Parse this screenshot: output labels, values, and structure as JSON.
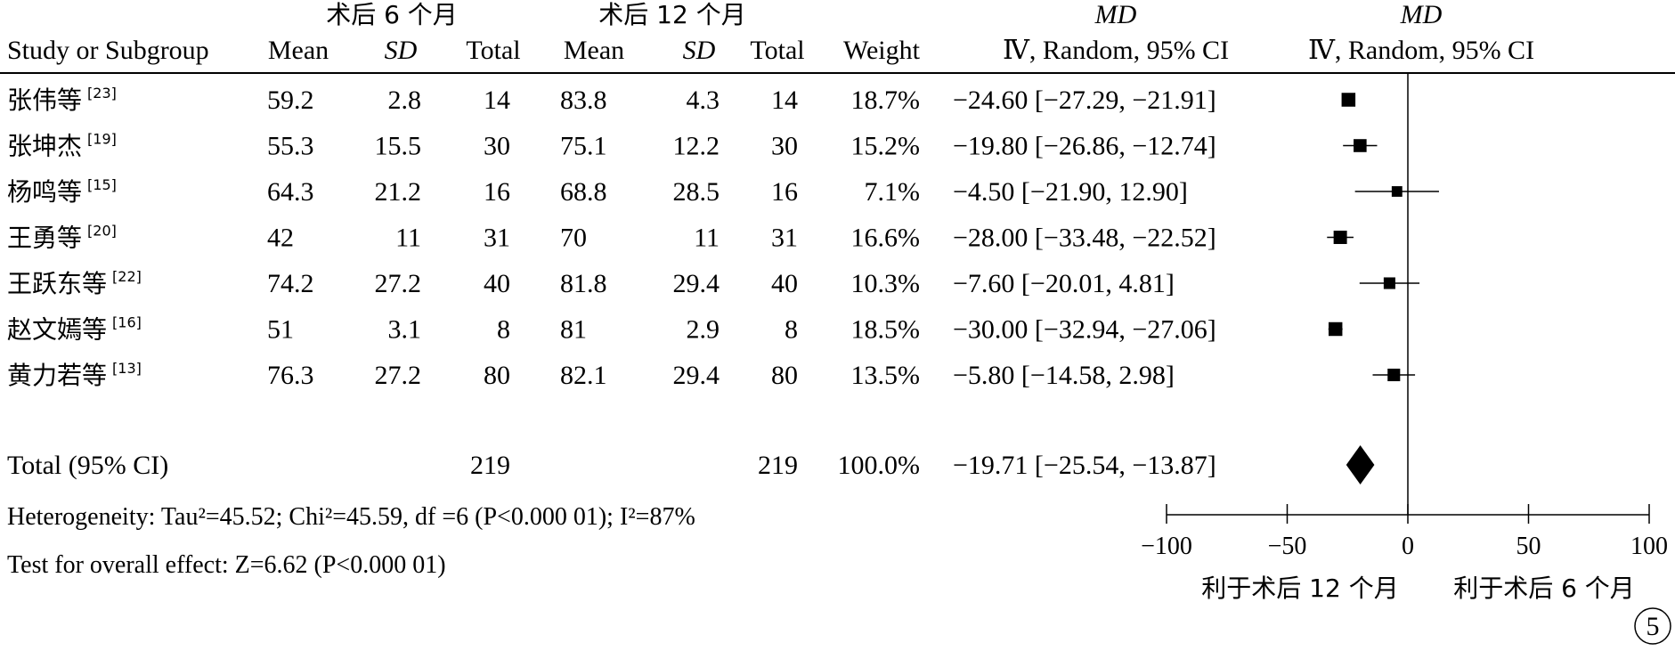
{
  "header": {
    "group1_title": "术后 6 个月",
    "group2_title": "术后 12 个月",
    "effect_label": "MD",
    "effect_method": "Ⅳ, Random, 95% CI",
    "plot_label": "MD",
    "plot_method": "Ⅳ, Random, 95% CI",
    "col_study": "Study or Subgroup",
    "col_mean1": "Mean",
    "col_sd1": "SD",
    "col_total1": "Total",
    "col_mean2": "Mean",
    "col_sd2": "SD",
    "col_total2": "Total",
    "col_weight": "Weight"
  },
  "studies": [
    {
      "name": "张伟等",
      "ref": "[23]",
      "mean1": "59.2",
      "sd1": "2.8",
      "total1": "14",
      "mean2": "83.8",
      "sd2": "4.3",
      "total2": "14",
      "weight": "18.7%",
      "ci_text": "−24.60 [−27.29, −21.91]"
    },
    {
      "name": "张坤杰",
      "ref": "[19]",
      "mean1": "55.3",
      "sd1": "15.5",
      "total1": "30",
      "mean2": "75.1",
      "sd2": "12.2",
      "total2": "30",
      "weight": "15.2%",
      "ci_text": "−19.80 [−26.86, −12.74]"
    },
    {
      "name": "杨鸣等",
      "ref": "[15]",
      "mean1": "64.3",
      "sd1": "21.2",
      "total1": "16",
      "mean2": "68.8",
      "sd2": "28.5",
      "total2": "16",
      "weight": "7.1%",
      "ci_text": "−4.50 [−21.90, 12.90]"
    },
    {
      "name": "王勇等",
      "ref": "[20]",
      "mean1": "42",
      "sd1": "11",
      "total1": "31",
      "mean2": "70",
      "sd2": "11",
      "total2": "31",
      "weight": "16.6%",
      "ci_text": "−28.00 [−33.48, −22.52]"
    },
    {
      "name": "王跃东等",
      "ref": "[22]",
      "mean1": "74.2",
      "sd1": "27.2",
      "total1": "40",
      "mean2": "81.8",
      "sd2": "29.4",
      "total2": "40",
      "weight": "10.3%",
      "ci_text": "−7.60 [−20.01, 4.81]"
    },
    {
      "name": "赵文嫣等",
      "ref": "[16]",
      "mean1": "51",
      "sd1": "3.1",
      "total1": "8",
      "mean2": "81",
      "sd2": "2.9",
      "total2": "8",
      "weight": "18.5%",
      "ci_text": "−30.00 [−32.94, −27.06]"
    },
    {
      "name": "黄力若等",
      "ref": "[13]",
      "mean1": "76.3",
      "sd1": "27.2",
      "total1": "80",
      "mean2": "82.1",
      "sd2": "29.4",
      "total2": "80",
      "weight": "13.5%",
      "ci_text": "−5.80 [−14.58, 2.98]"
    }
  ],
  "total": {
    "label": "Total (95% CI)",
    "total1": "219",
    "total2": "219",
    "weight": "100.0%",
    "ci_text": "−19.71 [−25.54, −13.87]"
  },
  "footer": {
    "heterogeneity": "Heterogeneity: Tau²=45.52; Chi²=45.59, df =6 (P<0.000 01); I²=87%",
    "overall_effect": "Test for overall effect: Z=6.62 (P<0.000 01)"
  },
  "axis_labels": {
    "left": "利于术后 12 个月",
    "right": "利于术后 6 个月"
  },
  "panel_label": "5",
  "chart_data": {
    "type": "forest",
    "xlim": [
      -100,
      100
    ],
    "ticks": [
      -100,
      -50,
      0,
      50,
      100
    ],
    "tick_labels": [
      "−100",
      "−50",
      "0",
      "50",
      "100"
    ],
    "studies": [
      {
        "md": -24.6,
        "lower": -27.29,
        "upper": -21.91,
        "weight": 18.7
      },
      {
        "md": -19.8,
        "lower": -26.86,
        "upper": -12.74,
        "weight": 15.2
      },
      {
        "md": -4.5,
        "lower": -21.9,
        "upper": 12.9,
        "weight": 7.1
      },
      {
        "md": -28.0,
        "lower": -33.48,
        "upper": -22.52,
        "weight": 16.6
      },
      {
        "md": -7.6,
        "lower": -20.01,
        "upper": 4.81,
        "weight": 10.3
      },
      {
        "md": -30.0,
        "lower": -32.94,
        "upper": -27.06,
        "weight": 18.5
      },
      {
        "md": -5.8,
        "lower": -14.58,
        "upper": 2.98,
        "weight": 13.5
      }
    ],
    "pooled": {
      "md": -19.71,
      "lower": -25.54,
      "upper": -13.87
    }
  }
}
